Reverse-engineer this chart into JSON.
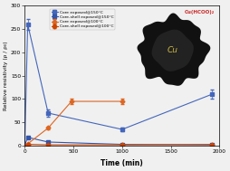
{
  "title": "",
  "xlabel": "Time (min)",
  "ylabel": "Relative resistivity (ρ / ρ₀)",
  "xlim": [
    0,
    2000
  ],
  "ylim": [
    0,
    300
  ],
  "xticks": [
    0,
    500,
    1000,
    1500,
    2000
  ],
  "yticks": [
    0,
    50,
    100,
    150,
    200,
    250,
    300
  ],
  "series": [
    {
      "label": "Core exposed@150°C",
      "color": "#4466bb",
      "marker": "s",
      "linestyle": "-",
      "x": [
        0,
        30,
        240,
        1000,
        1920
      ],
      "y": [
        1,
        260,
        70,
        35,
        110
      ],
      "yerr": [
        0.5,
        12,
        8,
        4,
        10
      ]
    },
    {
      "label": "Core-shell exposed@150°C",
      "color": "#3355aa",
      "marker": "s",
      "linestyle": "-",
      "x": [
        0,
        30,
        240,
        1000,
        1920
      ],
      "y": [
        1,
        18,
        8,
        3,
        2
      ],
      "yerr": [
        0.5,
        2,
        1,
        0.5,
        0.3
      ]
    },
    {
      "label": "Core exposed@100°C",
      "color": "#dd6622",
      "marker": "D",
      "linestyle": "-",
      "x": [
        0,
        30,
        240,
        480,
        1000
      ],
      "y": [
        1,
        4,
        38,
        95,
        95
      ],
      "yerr": [
        0.5,
        1,
        3,
        5,
        5
      ]
    },
    {
      "label": "Core-shell exposed@100°C",
      "color": "#cc4400",
      "marker": "D",
      "linestyle": "-",
      "x": [
        0,
        30,
        240,
        1000,
        1920
      ],
      "y": [
        1,
        3,
        2,
        2,
        3
      ],
      "yerr": [
        0.5,
        0.3,
        0.3,
        0.3,
        0.3
      ]
    }
  ],
  "inset": {
    "label_cu": "Cu",
    "label_shell": "Cu(HCOO)₂",
    "bg_color": "#aec8d8",
    "outer_color": "#111111",
    "inner_color": "#222222",
    "cu_color": "#ccbb44",
    "shell_color": "#cc2222"
  },
  "background_color": "#f0f0f0",
  "figsize": [
    2.54,
    1.89
  ],
  "dpi": 100
}
